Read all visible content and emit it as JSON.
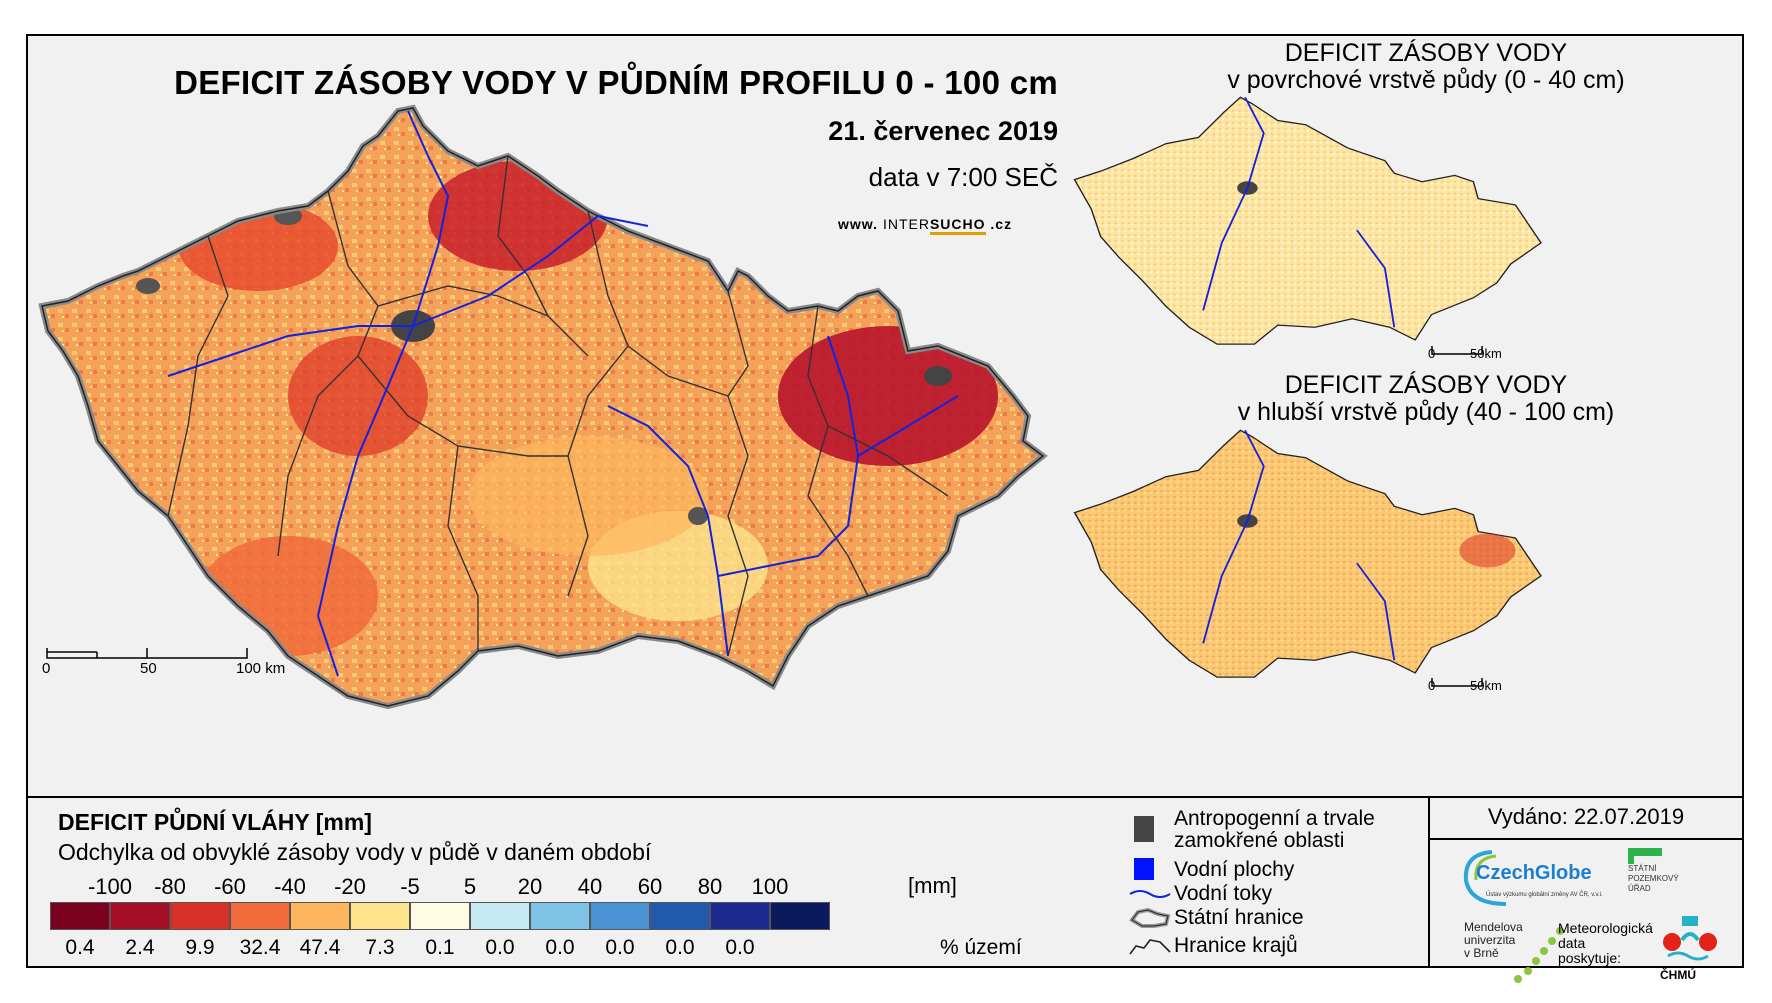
{
  "main": {
    "title": "DEFICIT ZÁSOBY VODY V PŮDNÍM PROFILU 0 - 100 cm",
    "date": "21. červenec 2019",
    "data_time": "data v 7:00 SEČ",
    "website_prefix": "www.",
    "website_brand_a": "INTER",
    "website_brand_b": "SUCHO",
    "website_suffix": ".cz",
    "scale": [
      "0",
      "50",
      "100 km"
    ]
  },
  "inset_top": {
    "title_line1": "DEFICIT ZÁSOBY VODY",
    "title_line2": "v povrchové vrstvě půdy (0 - 40 cm)",
    "scale": [
      "0",
      "50km"
    ]
  },
  "inset_bottom": {
    "title_line1": "DEFICIT ZÁSOBY VODY",
    "title_line2": "v hlubší vrstvě půdy (40 - 100 cm)",
    "scale": [
      "0",
      "50km"
    ]
  },
  "legend": {
    "heading": "DEFICIT PŮDNÍ VLÁHY [mm]",
    "subheading": "Odchylka od obvyklé zásoby vody v půdě v daném období",
    "breaks": [
      "-100",
      "-80",
      "-60",
      "-40",
      "-20",
      "-5",
      "5",
      "20",
      "40",
      "60",
      "80",
      "100"
    ],
    "unit": "[mm]",
    "colors": [
      "#7a0020",
      "#a50d24",
      "#d7312a",
      "#f26b3c",
      "#fdb65c",
      "#fde48c",
      "#fefde4",
      "#c7e9f4",
      "#7ec3e6",
      "#4a94d6",
      "#2159ad",
      "#1d2a8f",
      "#0b1a5c"
    ],
    "percentages": [
      "0.4",
      "2.4",
      "9.9",
      "32.4",
      "47.4",
      "7.3",
      "0.1",
      "0.0",
      "0.0",
      "0.0",
      "0.0",
      "0.0"
    ],
    "percent_label": "% území"
  },
  "symbols": {
    "anthropogenic": "Antropogenní a trvale zamokřené oblasti",
    "anthropogenic_line1": "Antropogenní a trvale",
    "anthropogenic_line2": "zamokřené oblasti",
    "water_bodies": "Vodní plochy",
    "rivers": "Vodní toky",
    "state_border": "Státní hranice",
    "region_border": "Hranice krajů"
  },
  "issued": "Vydáno: 22.07.2019",
  "logos": {
    "czechglobe": "CzechGlobe",
    "czechglobe_sub": "Ústav výzkumu globální změny AV ČR, v.v.i.",
    "spu_line1": "STÁTNÍ",
    "spu_line2": "POZEMKOVÝ",
    "spu_line3": "ÚŘAD",
    "mendel_line1": "Mendelova",
    "mendel_line2": "univerzita",
    "mendel_line3": "v Brně",
    "meteo_line1": "Meteorologická",
    "meteo_line2": "data",
    "meteo_line3": "poskytuje:",
    "chmu": "ČHMÚ"
  }
}
